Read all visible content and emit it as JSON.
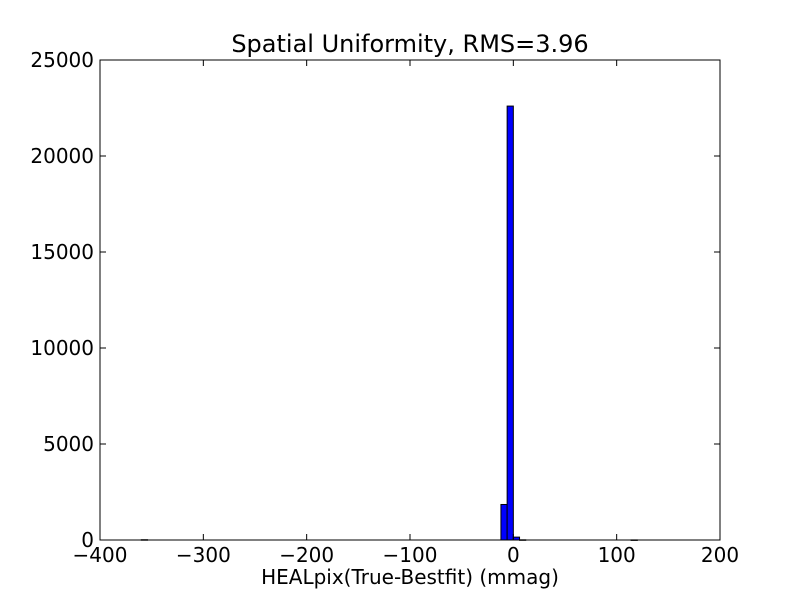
{
  "chart_data": {
    "type": "bar",
    "title": "Spatial Uniformity, RMS=3.96",
    "xlabel": "HEALpix(True-Bestfit) (mmag)",
    "ylabel": "",
    "xlim": [
      -400,
      200
    ],
    "ylim": [
      0,
      25000
    ],
    "x_ticks": [
      -400,
      -300,
      -200,
      -100,
      0,
      100,
      200
    ],
    "x_tick_labels": [
      "−400",
      "−300",
      "−200",
      "−100",
      "0",
      "100",
      "200"
    ],
    "y_ticks": [
      0,
      5000,
      10000,
      15000,
      20000,
      25000
    ],
    "y_tick_labels": [
      "0",
      "5000",
      "10000",
      "15000",
      "20000",
      "25000"
    ],
    "grid": false,
    "legend": "none",
    "bar_color": "#0000ff",
    "edge_color": "#000000",
    "bins": [
      {
        "x0": -360,
        "x1": -354,
        "count": 15
      },
      {
        "x0": -12,
        "x1": -6,
        "count": 1850
      },
      {
        "x0": -6,
        "x1": 0,
        "count": 22600
      },
      {
        "x0": 0,
        "x1": 6,
        "count": 150
      },
      {
        "x0": 6,
        "x1": 12,
        "count": 10
      },
      {
        "x0": 114,
        "x1": 120,
        "count": 5
      }
    ]
  }
}
